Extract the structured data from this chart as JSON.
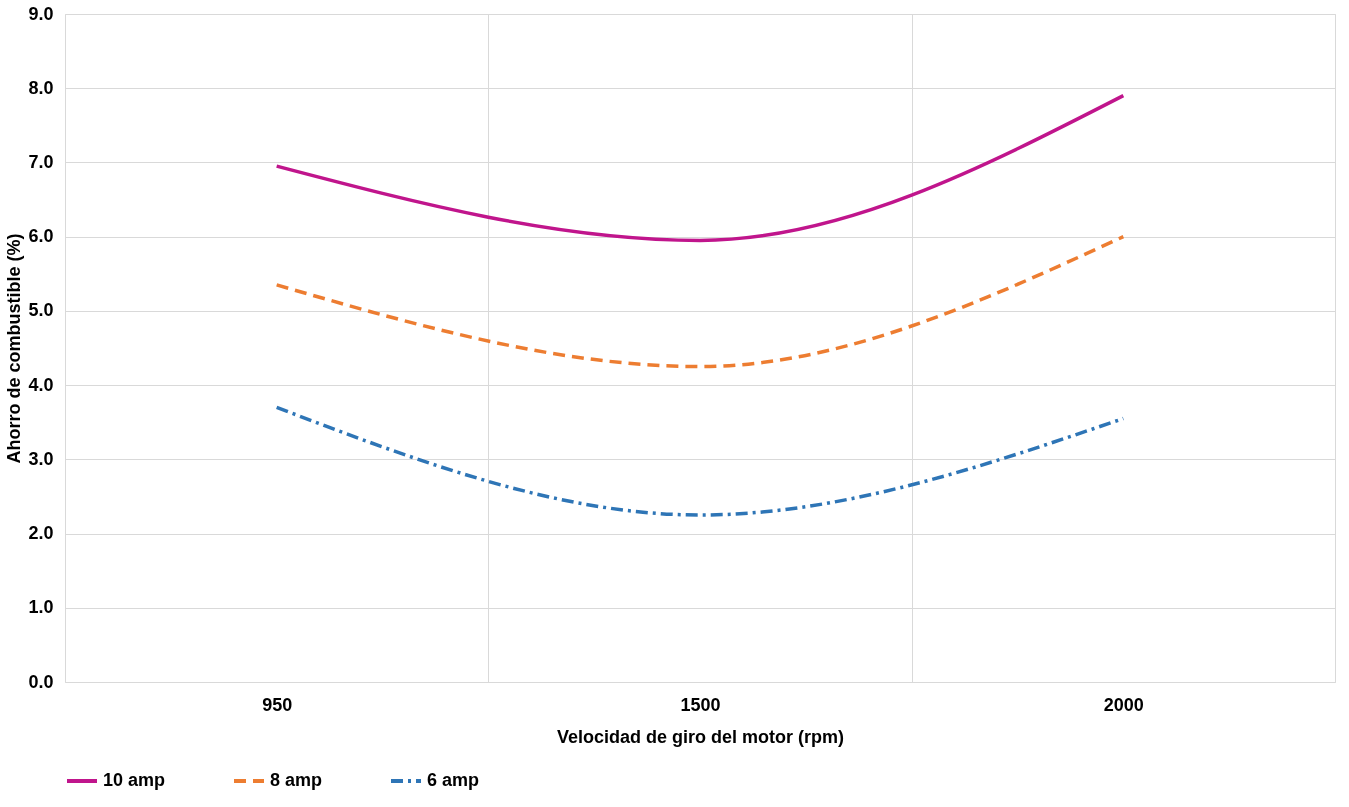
{
  "chart_data": {
    "type": "line",
    "xlabel": "Velocidad de giro del motor (rpm)",
    "ylabel": "Ahorro de combustible (%)",
    "categories": [
      "950",
      "1500",
      "2000"
    ],
    "series": [
      {
        "name": "10 amp",
        "color": "#c0158c",
        "values": [
          6.95,
          5.95,
          7.9
        ],
        "line_style": "solid"
      },
      {
        "name": "8 amp",
        "color": "#ed7d31",
        "values": [
          5.35,
          4.25,
          6.0
        ],
        "line_style": "dashed"
      },
      {
        "name": "6 amp",
        "color": "#2e75b6",
        "values": [
          3.7,
          2.25,
          3.55
        ],
        "line_style": "dashdot"
      }
    ],
    "ylim": [
      0,
      9
    ],
    "yticks": [
      {
        "value": 0,
        "label": "0.0"
      },
      {
        "value": 1,
        "label": "1.0"
      },
      {
        "value": 2,
        "label": "2.0"
      },
      {
        "value": 3,
        "label": "3.0"
      },
      {
        "value": 4,
        "label": "4.0"
      },
      {
        "value": 5,
        "label": "5.0"
      },
      {
        "value": 6,
        "label": "6.0"
      },
      {
        "value": 7,
        "label": "7.0"
      },
      {
        "value": 8,
        "label": "8.0"
      },
      {
        "value": 9,
        "label": "9.0"
      }
    ],
    "grid": true,
    "legend": "bottom",
    "marker": "none"
  }
}
